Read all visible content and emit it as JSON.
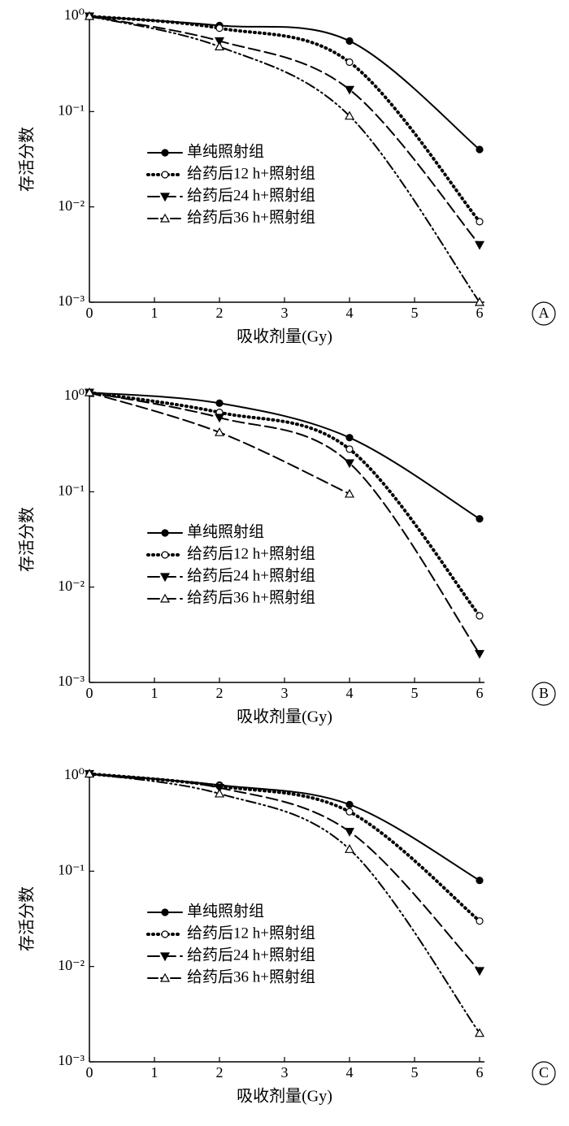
{
  "chart_data": [
    {
      "type": "line",
      "annotation": "A",
      "xlabel": "吸收剂量(Gy)",
      "ylabel": "存活分数",
      "log_y": true,
      "x": [
        0,
        2,
        4,
        6
      ],
      "xlim": [
        0,
        6
      ],
      "xticks": [
        0,
        1,
        2,
        3,
        4,
        5,
        6
      ],
      "ylim": [
        0.001,
        1
      ],
      "yticks": [
        {
          "value": 0.001,
          "label": "10⁻³"
        },
        {
          "value": 0.01,
          "label": "10⁻²"
        },
        {
          "value": 0.1,
          "label": "10⁻¹"
        },
        {
          "value": 1,
          "label": "10⁰"
        }
      ],
      "series": [
        {
          "name": "单纯照射组",
          "color": "#000000",
          "marker": "circle-filled",
          "line_style": "solid",
          "values": [
            1,
            0.8,
            0.55,
            0.04
          ]
        },
        {
          "name": "给药后12 h+照射组",
          "color": "#000000",
          "marker": "circle-open",
          "line_style": "dotted",
          "values": [
            1,
            0.75,
            0.33,
            0.007
          ]
        },
        {
          "name": "给药后24 h+照射组",
          "color": "#000000",
          "marker": "triangle-down-filled",
          "line_style": "dashed",
          "values": [
            1,
            0.55,
            0.17,
            0.004
          ]
        },
        {
          "name": "给药后36 h+照射组",
          "color": "#000000",
          "marker": "triangle-open",
          "line_style": "dash-dot-dot",
          "values": [
            1,
            0.48,
            0.09,
            0.001
          ]
        }
      ]
    },
    {
      "type": "line",
      "annotation": "B",
      "xlabel": "吸收剂量(Gy)",
      "ylabel": "存活分数",
      "log_y": true,
      "x": [
        0,
        2,
        4,
        6
      ],
      "xlim": [
        0,
        6
      ],
      "xticks": [
        0,
        1,
        2,
        3,
        4,
        5,
        6
      ],
      "ylim": [
        0.001,
        1
      ],
      "yticks": [
        {
          "value": 0.001,
          "label": "10⁻³"
        },
        {
          "value": 0.01,
          "label": "10⁻²"
        },
        {
          "value": 0.1,
          "label": "10⁻¹"
        },
        {
          "value": 1,
          "label": "10⁰"
        }
      ],
      "series": [
        {
          "name": "单纯照射组",
          "color": "#000000",
          "marker": "circle-filled",
          "line_style": "solid",
          "values": [
            1.1,
            0.85,
            0.37,
            0.052
          ]
        },
        {
          "name": "给药后12 h+照射组",
          "color": "#000000",
          "marker": "circle-open",
          "line_style": "dotted",
          "values": [
            1.1,
            0.68,
            0.28,
            0.005
          ]
        },
        {
          "name": "给药后24 h+照射组",
          "color": "#000000",
          "marker": "triangle-down-filled",
          "line_style": "dashed",
          "values": [
            1.1,
            0.6,
            0.2,
            0.002
          ]
        },
        {
          "name": "给药后36 h+照射组",
          "color": "#000000",
          "marker": "triangle-open",
          "line_style": "dashed",
          "values": [
            1.1,
            0.42,
            0.095,
            null
          ]
        }
      ]
    },
    {
      "type": "line",
      "annotation": "C",
      "xlabel": "吸收剂量(Gy)",
      "ylabel": "存活分数",
      "log_y": true,
      "x": [
        0,
        2,
        4,
        6
      ],
      "xlim": [
        0,
        6
      ],
      "xticks": [
        0,
        1,
        2,
        3,
        4,
        5,
        6
      ],
      "ylim": [
        0.001,
        1
      ],
      "yticks": [
        {
          "value": 0.001,
          "label": "10⁻³"
        },
        {
          "value": 0.01,
          "label": "10⁻²"
        },
        {
          "value": 0.1,
          "label": "10⁻¹"
        },
        {
          "value": 1,
          "label": "10⁰"
        }
      ],
      "series": [
        {
          "name": "单纯照射组",
          "color": "#000000",
          "marker": "circle-filled",
          "line_style": "solid",
          "values": [
            1.05,
            0.8,
            0.5,
            0.08
          ]
        },
        {
          "name": "给药后12 h+照射组",
          "color": "#000000",
          "marker": "circle-open",
          "line_style": "dotted",
          "values": [
            1.05,
            0.78,
            0.42,
            0.03
          ]
        },
        {
          "name": "给药后24 h+照射组",
          "color": "#000000",
          "marker": "triangle-down-filled",
          "line_style": "dashed",
          "values": [
            1.05,
            0.75,
            0.26,
            0.009
          ]
        },
        {
          "name": "给药后36 h+照射组",
          "color": "#000000",
          "marker": "triangle-open",
          "line_style": "dash-dot-dot",
          "values": [
            1.05,
            0.65,
            0.17,
            0.002
          ]
        }
      ]
    }
  ]
}
